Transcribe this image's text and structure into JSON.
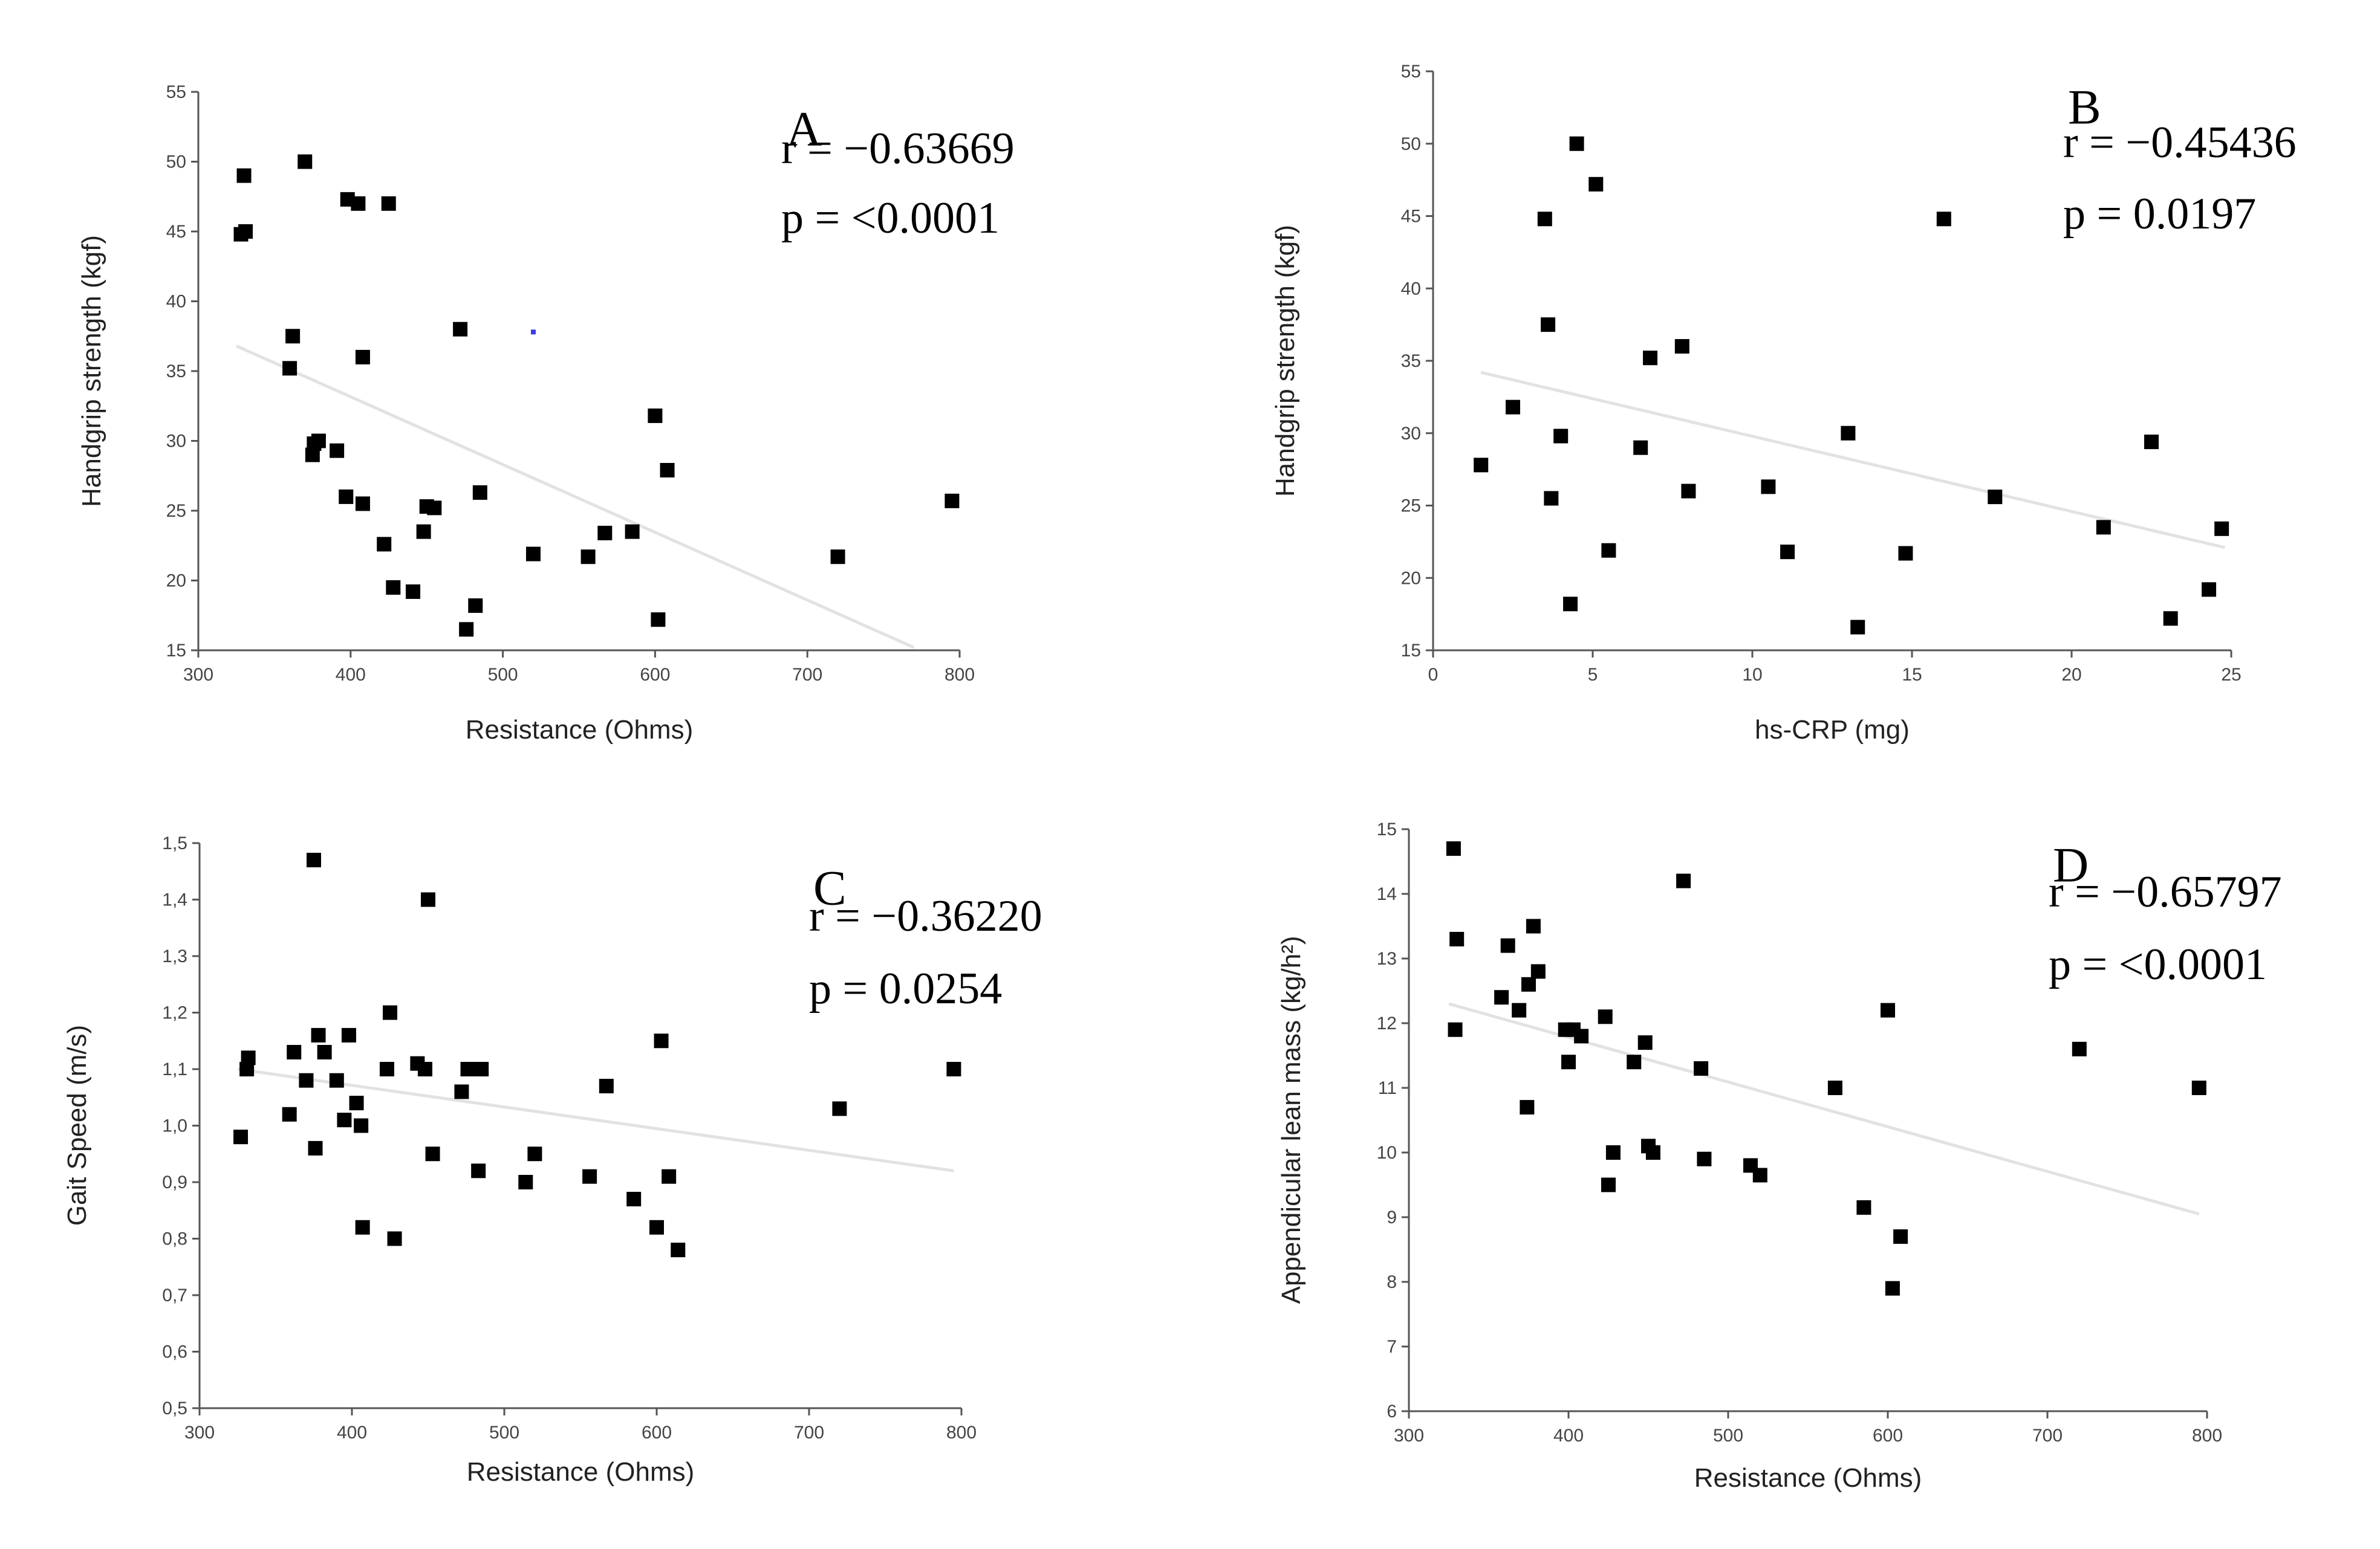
{
  "chart_data": [
    {
      "id": "A",
      "type": "scatter",
      "panel_label": "A",
      "r_text": "r = −0.63669",
      "p_text": "p = <0.0001",
      "xlabel": "Resistance (Ohms)",
      "ylabel": "Handgrip strength (kgf)",
      "xlim": [
        300,
        800
      ],
      "ylim": [
        15,
        55
      ],
      "xticks": [
        300,
        400,
        500,
        600,
        700,
        800
      ],
      "yticks": [
        15,
        20,
        25,
        30,
        35,
        40,
        45,
        50,
        55
      ],
      "xtick_labels": [
        "300",
        "400",
        "500",
        "600",
        "700",
        "800"
      ],
      "ytick_labels": [
        "15",
        "20",
        "25",
        "30",
        "35",
        "40",
        "45",
        "50",
        "55"
      ],
      "fit": {
        "x": [
          325,
          770
        ],
        "y": [
          36.8,
          15.2
        ]
      },
      "points": [
        [
          330,
          49
        ],
        [
          328,
          44.8
        ],
        [
          331,
          45
        ],
        [
          370,
          50
        ],
        [
          398,
          47.3
        ],
        [
          405,
          47
        ],
        [
          425,
          47
        ],
        [
          362,
          37.5
        ],
        [
          360,
          35.2
        ],
        [
          472,
          38
        ],
        [
          408,
          36
        ],
        [
          376,
          29.8
        ],
        [
          379,
          30
        ],
        [
          375,
          29
        ],
        [
          391,
          29.3
        ],
        [
          397,
          26
        ],
        [
          408,
          25.5
        ],
        [
          450,
          25.3
        ],
        [
          455,
          25.2
        ],
        [
          485,
          26.3
        ],
        [
          448,
          23.5
        ],
        [
          422,
          22.6
        ],
        [
          428,
          19.5
        ],
        [
          441,
          19.2
        ],
        [
          482,
          18.2
        ],
        [
          476,
          16.5
        ],
        [
          520,
          21.9
        ],
        [
          556,
          21.7
        ],
        [
          567,
          23.4
        ],
        [
          585,
          23.5
        ],
        [
          600,
          31.8
        ],
        [
          608,
          27.9
        ],
        [
          602,
          17.2
        ],
        [
          720,
          21.7
        ],
        [
          795,
          25.7
        ]
      ]
    },
    {
      "id": "B",
      "type": "scatter",
      "panel_label": "B",
      "r_text": "r = −0.45436",
      "p_text": "p = 0.0197",
      "xlabel": "hs-CRP (mg)",
      "ylabel": "Handgrip strength (kgf)",
      "xlim": [
        0,
        25
      ],
      "ylim": [
        15,
        55
      ],
      "xticks": [
        0,
        5,
        10,
        15,
        20,
        25
      ],
      "yticks": [
        15,
        20,
        25,
        30,
        35,
        40,
        45,
        50,
        55
      ],
      "xtick_labels": [
        "0",
        "5",
        "10",
        "15",
        "20",
        "25"
      ],
      "ytick_labels": [
        "15",
        "20",
        "25",
        "30",
        "35",
        "40",
        "45",
        "50",
        "55"
      ],
      "fit": {
        "x": [
          1.5,
          24.8
        ],
        "y": [
          34.2,
          22.1
        ]
      },
      "points": [
        [
          1.5,
          27.8
        ],
        [
          2.5,
          31.8
        ],
        [
          3.5,
          44.8
        ],
        [
          3.6,
          37.5
        ],
        [
          3.7,
          25.5
        ],
        [
          4.0,
          29.8
        ],
        [
          4.3,
          18.2
        ],
        [
          4.5,
          50
        ],
        [
          5.1,
          47.2
        ],
        [
          5.5,
          21.9
        ],
        [
          6.5,
          29
        ],
        [
          6.8,
          35.2
        ],
        [
          7.8,
          36
        ],
        [
          8.0,
          26
        ],
        [
          10.5,
          26.3
        ],
        [
          11.1,
          21.8
        ],
        [
          13.0,
          30
        ],
        [
          13.3,
          16.6
        ],
        [
          14.8,
          21.7
        ],
        [
          16.0,
          44.8
        ],
        [
          17.6,
          25.6
        ],
        [
          21.0,
          23.5
        ],
        [
          22.5,
          29.4
        ],
        [
          23.1,
          17.2
        ],
        [
          24.3,
          19.2
        ],
        [
          24.7,
          23.4
        ]
      ]
    },
    {
      "id": "C",
      "type": "scatter",
      "panel_label": "C",
      "r_text": "r = −0.36220",
      "p_text": "p = 0.0254",
      "xlabel": "Resistance (Ohms)",
      "ylabel": "Gait Speed (m/s)",
      "xlim": [
        300,
        800
      ],
      "ylim": [
        0.5,
        1.5
      ],
      "xticks": [
        300,
        400,
        500,
        600,
        700,
        800
      ],
      "yticks": [
        0.5,
        0.6,
        0.7,
        0.8,
        0.9,
        1.0,
        1.1,
        1.2,
        1.3,
        1.4,
        1.5
      ],
      "xtick_labels": [
        "300",
        "400",
        "500",
        "600",
        "700",
        "800"
      ],
      "ytick_labels": [
        "0,5",
        "0,6",
        "0,7",
        "0,8",
        "0,9",
        "1,0",
        "1,1",
        "1,2",
        "1,3",
        "1,4",
        "1,5"
      ],
      "fit": {
        "x": [
          325,
          795
        ],
        "y": [
          1.1,
          0.92
        ]
      },
      "points": [
        [
          327,
          0.98
        ],
        [
          331,
          1.1
        ],
        [
          332,
          1.12
        ],
        [
          359,
          1.02
        ],
        [
          362,
          1.13
        ],
        [
          370,
          1.08
        ],
        [
          375,
          1.47
        ],
        [
          376,
          0.96
        ],
        [
          378,
          1.16
        ],
        [
          382,
          1.13
        ],
        [
          390,
          1.08
        ],
        [
          395,
          1.01
        ],
        [
          398,
          1.16
        ],
        [
          403,
          1.04
        ],
        [
          406,
          1.0
        ],
        [
          407,
          0.82
        ],
        [
          423,
          1.1
        ],
        [
          425,
          1.2
        ],
        [
          428,
          0.8
        ],
        [
          443,
          1.11
        ],
        [
          448,
          1.1
        ],
        [
          450,
          1.4
        ],
        [
          453,
          0.95
        ],
        [
          472,
          1.06
        ],
        [
          476,
          1.1
        ],
        [
          483,
          0.92
        ],
        [
          485,
          1.1
        ],
        [
          514,
          0.9
        ],
        [
          520,
          0.95
        ],
        [
          556,
          0.91
        ],
        [
          567,
          1.07
        ],
        [
          585,
          0.87
        ],
        [
          600,
          0.82
        ],
        [
          603,
          1.15
        ],
        [
          608,
          0.91
        ],
        [
          614,
          0.78
        ],
        [
          720,
          1.03
        ],
        [
          795,
          1.1
        ]
      ]
    },
    {
      "id": "D",
      "type": "scatter",
      "panel_label": "D",
      "r_text": "r = −0.65797",
      "p_text": "p = <0.0001",
      "xlabel": "Resistance (Ohms)",
      "ylabel": "Appendicular lean mass (kg/h²)",
      "xlim": [
        300,
        800
      ],
      "ylim": [
        6,
        15
      ],
      "xticks": [
        300,
        400,
        500,
        600,
        700,
        800
      ],
      "yticks": [
        6,
        7,
        8,
        9,
        10,
        11,
        12,
        13,
        14,
        15
      ],
      "xtick_labels": [
        "300",
        "400",
        "500",
        "600",
        "700",
        "800"
      ],
      "ytick_labels": [
        "6",
        "7",
        "8",
        "9",
        "10",
        "11",
        "12",
        "13",
        "14",
        "15"
      ],
      "fit": {
        "x": [
          325,
          795
        ],
        "y": [
          12.3,
          9.05
        ]
      },
      "points": [
        [
          328,
          14.7
        ],
        [
          330,
          13.3
        ],
        [
          329,
          11.9
        ],
        [
          358,
          12.4
        ],
        [
          362,
          13.2
        ],
        [
          369,
          12.2
        ],
        [
          375,
          12.6
        ],
        [
          374,
          10.7
        ],
        [
          378,
          13.5
        ],
        [
          381,
          12.8
        ],
        [
          398,
          11.9
        ],
        [
          400,
          11.4
        ],
        [
          403,
          11.9
        ],
        [
          408,
          11.8
        ],
        [
          423,
          12.1
        ],
        [
          425,
          9.5
        ],
        [
          428,
          10.0
        ],
        [
          441,
          11.4
        ],
        [
          448,
          11.7
        ],
        [
          450,
          10.1
        ],
        [
          453,
          10.0
        ],
        [
          472,
          14.2
        ],
        [
          483,
          11.3
        ],
        [
          485,
          9.9
        ],
        [
          514,
          9.8
        ],
        [
          520,
          9.65
        ],
        [
          567,
          11.0
        ],
        [
          585,
          9.15
        ],
        [
          600,
          12.2
        ],
        [
          603,
          7.9
        ],
        [
          608,
          8.7
        ],
        [
          720,
          11.6
        ],
        [
          795,
          11.0
        ]
      ]
    }
  ],
  "stray_mark": {
    "panel": "A",
    "x": 520,
    "y": 37.8,
    "color": "#3a3af0"
  }
}
